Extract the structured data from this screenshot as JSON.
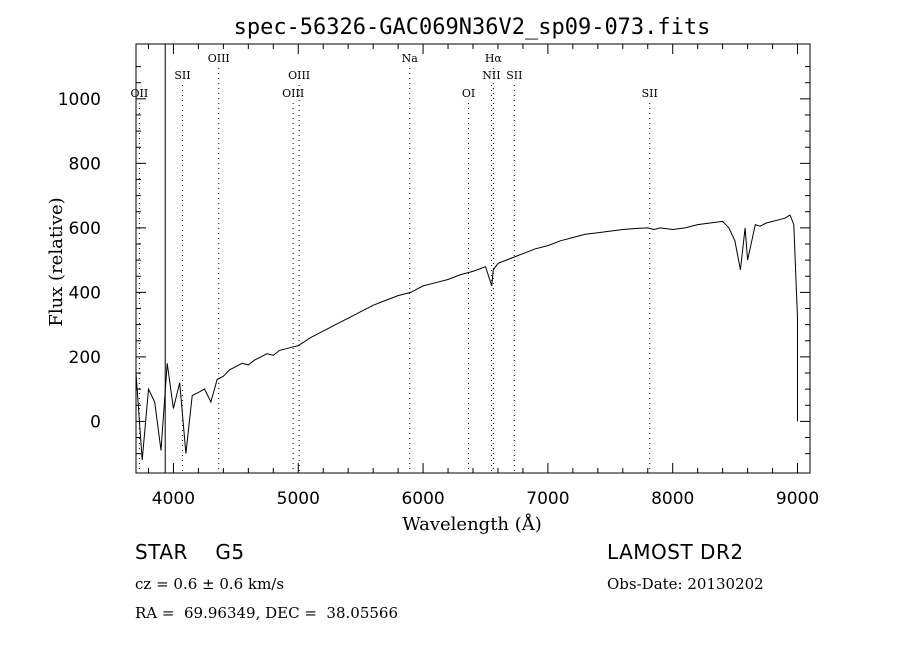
{
  "chart_data": {
    "type": "line",
    "title": "spec-56326-GAC069N36V2_sp09-073.fits",
    "xlabel": "Wavelength (Å)",
    "ylabel": "Flux (relative)",
    "xlim": [
      3700,
      9100
    ],
    "ylim": [
      -160,
      1170
    ],
    "x_ticks": [
      4000,
      5000,
      6000,
      7000,
      8000,
      9000
    ],
    "y_ticks": [
      0,
      200,
      400,
      600,
      800,
      1000
    ],
    "grid": false,
    "legend": "none",
    "line_color": "#000000",
    "marker_line_color": "#000000",
    "series": [
      {
        "x": [
          3700,
          3750,
          3800,
          3850,
          3900,
          3950,
          4000,
          4050,
          4100,
          4150,
          4200,
          4250,
          4300,
          4350,
          4400,
          4450,
          4500,
          4550,
          4600,
          4650,
          4700,
          4750,
          4800,
          4850,
          4900,
          4950,
          5000,
          5100,
          5200,
          5300,
          5400,
          5500,
          5600,
          5700,
          5800,
          5900,
          6000,
          6100,
          6200,
          6300,
          6400,
          6500,
          6550,
          6563,
          6600,
          6700,
          6800,
          6900,
          7000,
          7100,
          7200,
          7300,
          7400,
          7500,
          7600,
          7700,
          7800,
          7850,
          7900,
          8000,
          8100,
          8200,
          8300,
          8400,
          8450,
          8498,
          8542,
          8580,
          8600,
          8662,
          8700,
          8750,
          8800,
          8850,
          8900,
          8940,
          8970,
          9000,
          9000
        ],
        "y": [
          150,
          -120,
          100,
          60,
          -90,
          180,
          40,
          120,
          -100,
          80,
          90,
          100,
          60,
          130,
          140,
          160,
          170,
          180,
          175,
          190,
          200,
          210,
          205,
          220,
          225,
          230,
          235,
          260,
          280,
          300,
          320,
          340,
          360,
          375,
          390,
          400,
          420,
          430,
          440,
          455,
          465,
          480,
          420,
          470,
          490,
          505,
          520,
          535,
          545,
          560,
          570,
          580,
          585,
          590,
          595,
          598,
          600,
          595,
          600,
          595,
          600,
          610,
          615,
          620,
          600,
          560,
          470,
          600,
          500,
          610,
          605,
          615,
          620,
          625,
          630,
          640,
          610,
          320,
          0
        ]
      }
    ],
    "spectral_lines": [
      {
        "label": "OII",
        "x": 3727,
        "row": 3
      },
      {
        "label": "SII",
        "x": 4072,
        "row": 2
      },
      {
        "label": "OIII",
        "x": 4363,
        "row": 1
      },
      {
        "label": "OIII",
        "x": 4959,
        "row": 3
      },
      {
        "label": "OIII",
        "x": 5007,
        "row": 2
      },
      {
        "label": "Na",
        "x": 5893,
        "row": 1
      },
      {
        "label": "OI",
        "x": 6364,
        "row": 3
      },
      {
        "label": "NII",
        "x": 6548,
        "row": 2
      },
      {
        "label": "Hα",
        "x": 6563,
        "row": 1
      },
      {
        "label": "SII",
        "x": 6731,
        "row": 2
      },
      {
        "label": "SII",
        "x": 7816,
        "row": 3
      }
    ],
    "solid_line_x": 3934
  },
  "info": {
    "object_class": "STAR    G5",
    "survey": "LAMOST DR2",
    "cz": "cz = 0.6 ± 0.6 km/s",
    "obs_date": "Obs-Date: 20130202",
    "coords": "RA =  69.96349, DEC =  38.05566"
  }
}
